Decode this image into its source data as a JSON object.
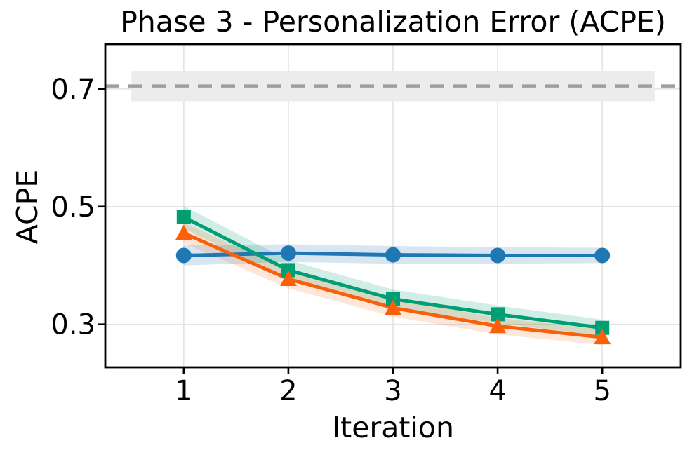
{
  "figure": {
    "background": "#ffffff",
    "text_color": "#000000"
  },
  "chart_data": {
    "type": "line",
    "title": "Phase 3 - Personalization Error (ACPE)",
    "xlabel": "Iteration",
    "ylabel": "ACPE",
    "x": [
      1,
      2,
      3,
      4,
      5
    ],
    "xticks": [
      1,
      2,
      3,
      4,
      5
    ],
    "xtick_labels": [
      "1",
      "2",
      "3",
      "4",
      "5"
    ],
    "yticks": [
      0.3,
      0.5,
      0.7
    ],
    "ytick_labels": [
      "0.3",
      "0.5",
      "0.7"
    ],
    "xlim": [
      0.25,
      5.75
    ],
    "ylim": [
      0.227,
      0.776
    ],
    "grid": true,
    "grid_color": "#e4e4e4",
    "legend": "none",
    "series": [
      {
        "name": "blue-circles",
        "marker": "circle",
        "color": "#1f77b4",
        "band_opacity": 0.18,
        "values": [
          0.417,
          0.421,
          0.418,
          0.417,
          0.417
        ],
        "band_halfwidth": [
          0.017,
          0.015,
          0.015,
          0.014,
          0.013
        ]
      },
      {
        "name": "green-squares",
        "marker": "square",
        "color": "#029e73",
        "band_opacity": 0.18,
        "values": [
          0.482,
          0.392,
          0.343,
          0.317,
          0.294
        ],
        "band_halfwidth": [
          0.019,
          0.017,
          0.016,
          0.015,
          0.014
        ]
      },
      {
        "name": "orange-triangles",
        "marker": "triangle",
        "color": "#f8610a",
        "band_opacity": 0.16,
        "values": [
          0.455,
          0.377,
          0.328,
          0.297,
          0.278
        ],
        "band_halfwidth": [
          0.017,
          0.016,
          0.015,
          0.014,
          0.013
        ]
      }
    ],
    "reference_line": {
      "value": 0.705,
      "style": "dashed",
      "color": "#9e9e9e",
      "band": [
        0.679,
        0.73
      ],
      "band_x": [
        0.5,
        5.5
      ],
      "band_color": "#ececec"
    }
  }
}
